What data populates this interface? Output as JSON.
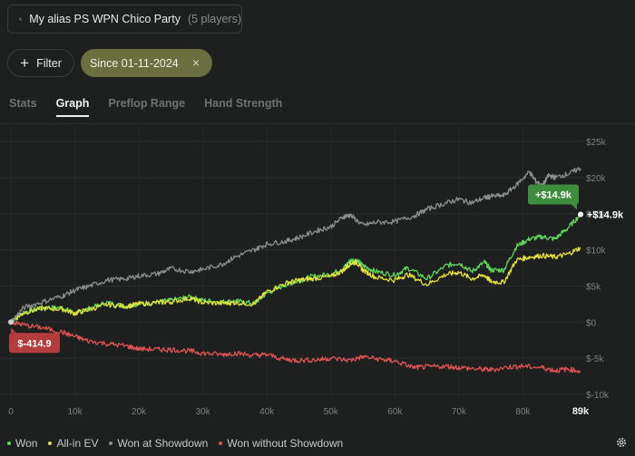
{
  "header": {
    "alias_name": "My alias PS WPN Chico Party",
    "alias_count": "(5 players)"
  },
  "filters": {
    "filter_label": "Filter",
    "date_label": "Since 01-11-2024",
    "close_icon": "×"
  },
  "tabs": [
    {
      "label": "Stats",
      "active": false
    },
    {
      "label": "Graph",
      "active": true
    },
    {
      "label": "Preflop Range",
      "active": false
    },
    {
      "label": "Hand Strength",
      "active": false
    }
  ],
  "legend": [
    {
      "label": "Won",
      "color": "#5fd65a"
    },
    {
      "label": "All-in EV",
      "color": "#e2e23c"
    },
    {
      "label": "Won at Showdown",
      "color": "#8d8d8d"
    },
    {
      "label": "Won without Showdown",
      "color": "#e05252"
    }
  ],
  "chart_data": {
    "type": "line",
    "x_ticks": [
      "0",
      "10k",
      "20k",
      "30k",
      "40k",
      "50k",
      "60k",
      "70k",
      "80k"
    ],
    "x_end_label": "89k",
    "y_ticks": [
      "$25k",
      "$20k",
      "$15k",
      "$10k",
      "$5k",
      "$0",
      "$-5k",
      "$-10k"
    ],
    "xlim": [
      0,
      89000
    ],
    "ylim": [
      -10000,
      25000
    ],
    "series": [
      {
        "name": "Won",
        "color": "#5fd65a",
        "x": [
          0,
          2000,
          5000,
          8000,
          10000,
          12000,
          15000,
          18000,
          20000,
          23000,
          25000,
          28000,
          30000,
          33000,
          35000,
          38000,
          40000,
          43000,
          45000,
          47000,
          50000,
          52000,
          53000,
          54000,
          55000,
          57000,
          60000,
          62000,
          65000,
          68000,
          70000,
          72000,
          74000,
          75000,
          77000,
          79000,
          81000,
          83000,
          85000,
          87000,
          89000
        ],
        "y": [
          0,
          1400,
          2000,
          2000,
          1200,
          1800,
          2700,
          2200,
          2500,
          2800,
          3000,
          3500,
          3000,
          2800,
          2900,
          2600,
          4000,
          5200,
          5700,
          6300,
          6600,
          7500,
          8500,
          8600,
          7800,
          7000,
          6500,
          7500,
          6000,
          7800,
          8200,
          7000,
          8300,
          7200,
          7200,
          10500,
          11500,
          11800,
          11500,
          13000,
          14900
        ]
      },
      {
        "name": "All-in EV",
        "color": "#e2e23c",
        "x": [
          0,
          2000,
          5000,
          8000,
          10000,
          12000,
          15000,
          18000,
          20000,
          23000,
          25000,
          28000,
          30000,
          33000,
          35000,
          38000,
          40000,
          43000,
          45000,
          47000,
          50000,
          52000,
          53000,
          54000,
          55000,
          57000,
          60000,
          62000,
          65000,
          68000,
          70000,
          72000,
          74000,
          75000,
          77000,
          79000,
          81000,
          83000,
          85000,
          87000,
          89000
        ],
        "y": [
          0,
          1300,
          1900,
          1800,
          1200,
          1700,
          2400,
          2200,
          2500,
          2700,
          2800,
          3300,
          2700,
          2600,
          2700,
          2500,
          4200,
          5400,
          5800,
          6000,
          6300,
          7200,
          8100,
          8300,
          7200,
          6200,
          5800,
          6600,
          5200,
          6600,
          6900,
          6000,
          6500,
          5600,
          5500,
          8600,
          9000,
          9200,
          9000,
          9400,
          10300
        ]
      },
      {
        "name": "Won at Showdown",
        "color": "#8d8d8d",
        "x": [
          0,
          2000,
          5000,
          8000,
          10000,
          12000,
          15000,
          18000,
          20000,
          23000,
          25000,
          28000,
          30000,
          33000,
          35000,
          38000,
          40000,
          43000,
          45000,
          48000,
          50000,
          52000,
          53000,
          55000,
          57000,
          60000,
          63000,
          65000,
          68000,
          70000,
          72000,
          74000,
          75000,
          77000,
          79000,
          81000,
          82000,
          83000,
          84000,
          85000,
          87000,
          89000
        ],
        "y": [
          0,
          2000,
          2800,
          3600,
          4400,
          4900,
          5800,
          6000,
          6400,
          6700,
          7400,
          7000,
          7300,
          8000,
          9000,
          10000,
          10800,
          11200,
          11700,
          12700,
          13200,
          14600,
          14800,
          13400,
          13800,
          13900,
          14700,
          15600,
          16500,
          17000,
          16500,
          17200,
          17400,
          17500,
          19000,
          20800,
          19500,
          18800,
          20300,
          20000,
          20500,
          21300
        ]
      },
      {
        "name": "Won without Showdown",
        "color": "#e05252",
        "x": [
          0,
          2000,
          5000,
          8000,
          10000,
          12000,
          15000,
          18000,
          20000,
          23000,
          25000,
          28000,
          30000,
          33000,
          35000,
          38000,
          40000,
          43000,
          45000,
          48000,
          50000,
          53000,
          55000,
          58000,
          60000,
          63000,
          65000,
          68000,
          70000,
          73000,
          75000,
          78000,
          80000,
          83000,
          85000,
          87000,
          89000
        ],
        "y": [
          0,
          -400,
          -800,
          -1400,
          -2000,
          -2600,
          -3000,
          -3300,
          -3700,
          -3800,
          -3800,
          -4000,
          -4300,
          -4500,
          -4300,
          -4600,
          -4500,
          -5200,
          -5300,
          -5200,
          -5000,
          -5300,
          -4800,
          -5200,
          -5400,
          -6300,
          -6200,
          -6100,
          -6300,
          -6500,
          -6600,
          -6200,
          -6100,
          -6300,
          -6700,
          -6500,
          -6800
        ]
      }
    ],
    "end_label_won": "+$14.9k",
    "start_label_wwsd": "$-414.9",
    "grid": true,
    "legend_position": "bottom-left"
  }
}
